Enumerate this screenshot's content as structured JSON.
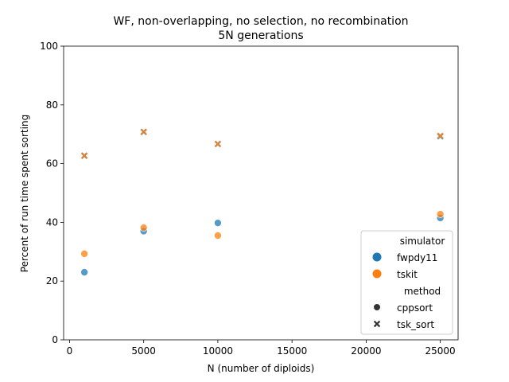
{
  "chart_data": {
    "type": "scatter",
    "title": "WF, non-overlapping, no selection, no recombination",
    "subtitle": "5N generations",
    "xlabel": "N (number of diploids)",
    "ylabel": "Percent of run time spent sorting",
    "xlim": [
      -400,
      26200
    ],
    "ylim": [
      0,
      100
    ],
    "xticks": [
      0,
      5000,
      10000,
      15000,
      20000,
      25000
    ],
    "yticks": [
      0,
      20,
      40,
      60,
      80,
      100
    ],
    "grid": false,
    "legend_position": "lower-right",
    "legend": {
      "hue_title": "simulator",
      "style_title": "method",
      "hue_entries": [
        "fwpdy11",
        "tskit"
      ],
      "style_entries": [
        "cppsort",
        "tsk_sort"
      ]
    },
    "colors": {
      "fwpdy11": "#1f77b4",
      "tskit": "#ff7f0e"
    },
    "series": [
      {
        "simulator": "fwpdy11",
        "method": "cppsort",
        "x": [
          1000,
          5000,
          10000,
          25000
        ],
        "y": [
          23.0,
          37.0,
          39.8,
          41.5
        ]
      },
      {
        "simulator": "tskit",
        "method": "cppsort",
        "x": [
          1000,
          5000,
          10000,
          25000
        ],
        "y": [
          29.3,
          38.2,
          35.5,
          42.8
        ]
      },
      {
        "simulator": "fwpdy11",
        "method": "tsk_sort",
        "x": [
          1000,
          5000,
          10000,
          25000
        ],
        "y": [
          62.7,
          70.8,
          66.7,
          69.3
        ]
      },
      {
        "simulator": "tskit",
        "method": "tsk_sort",
        "x": [
          1000,
          5000,
          10000,
          25000
        ],
        "y": [
          62.7,
          70.8,
          66.7,
          69.5
        ]
      }
    ]
  }
}
